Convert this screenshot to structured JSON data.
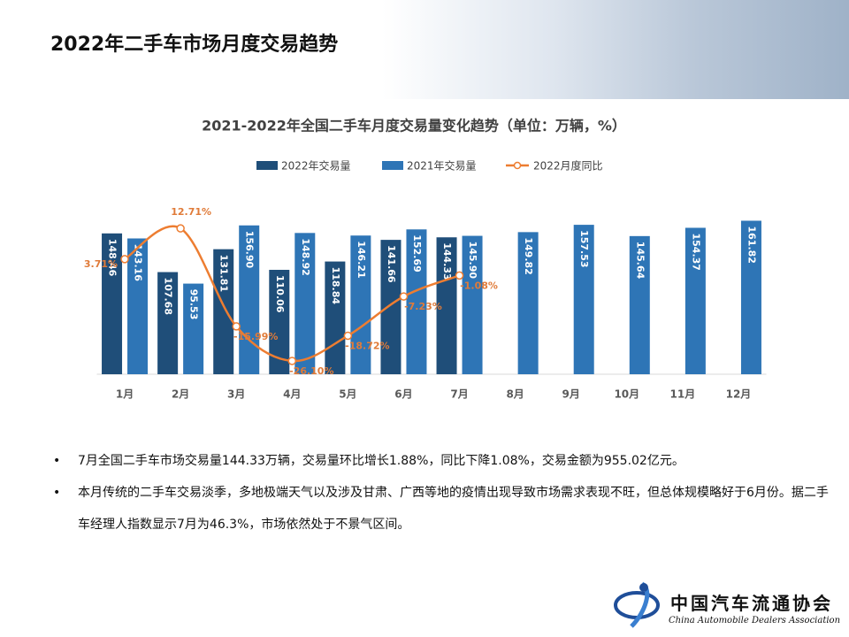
{
  "header": {
    "title": "2022年二手车市场月度交易趋势"
  },
  "chart_data": {
    "type": "bar_line",
    "title": "2021-2022年全国二手车月度交易量变化趋势（单位：万辆，%）",
    "categories": [
      "1月",
      "2月",
      "3月",
      "4月",
      "5月",
      "6月",
      "7月",
      "8月",
      "9月",
      "10月",
      "11月",
      "12月"
    ],
    "series": [
      {
        "name": "2022年交易量",
        "type": "bar",
        "color": "#1f4e79",
        "values": [
          148.46,
          107.68,
          131.81,
          110.06,
          118.84,
          141.66,
          144.33,
          null,
          null,
          null,
          null,
          null
        ],
        "value_labels": [
          "148.46",
          "107.68",
          "131.81",
          "110.06",
          "118.84",
          "141.66",
          "144.33",
          null,
          null,
          null,
          null,
          null
        ]
      },
      {
        "name": "2021年交易量",
        "type": "bar",
        "color": "#2e75b6",
        "values": [
          143.16,
          95.53,
          156.9,
          148.92,
          146.21,
          152.69,
          145.9,
          149.82,
          157.53,
          145.64,
          154.37,
          161.82
        ],
        "value_labels": [
          "143.16",
          "95.53",
          "156.90",
          "148.92",
          "146.21",
          "152.69",
          "145.90",
          "149.82",
          "157.53",
          "145.64",
          "154.37",
          "161.82"
        ]
      },
      {
        "name": "2022月度同比",
        "type": "line",
        "axis": "y2",
        "color": "#ed7d31",
        "values": [
          3.71,
          12.71,
          -15.99,
          -26.1,
          -18.72,
          -7.23,
          -1.08,
          null,
          null,
          null,
          null,
          null
        ],
        "value_labels": [
          "3.71%",
          "12.71%",
          "-15.99%",
          "-26.10%",
          "-18.72%",
          "-7.23%",
          "-1.08%",
          null,
          null,
          null,
          null,
          null
        ]
      }
    ],
    "ylim": [
      0,
      180
    ],
    "y2lim": [
      -30,
      20
    ],
    "grid": false,
    "legend": "top"
  },
  "bullets": [
    "7月全国二手车市场交易量144.33万辆，交易量环比增长1.88%，同比下降1.08%，交易金额为955.02亿元。",
    "本月传统的二手车交易淡季，多地极端天气以及涉及甘肃、广西等地的疫情出现导致市场需求表现不旺，但总体规模略好于6月份。据二手车经理人指数显示7月为46.3%，市场依然处于不景气区间。"
  ],
  "logo": {
    "name": "中国汽车流通协会",
    "english": "China Automobile Dealers Association"
  }
}
